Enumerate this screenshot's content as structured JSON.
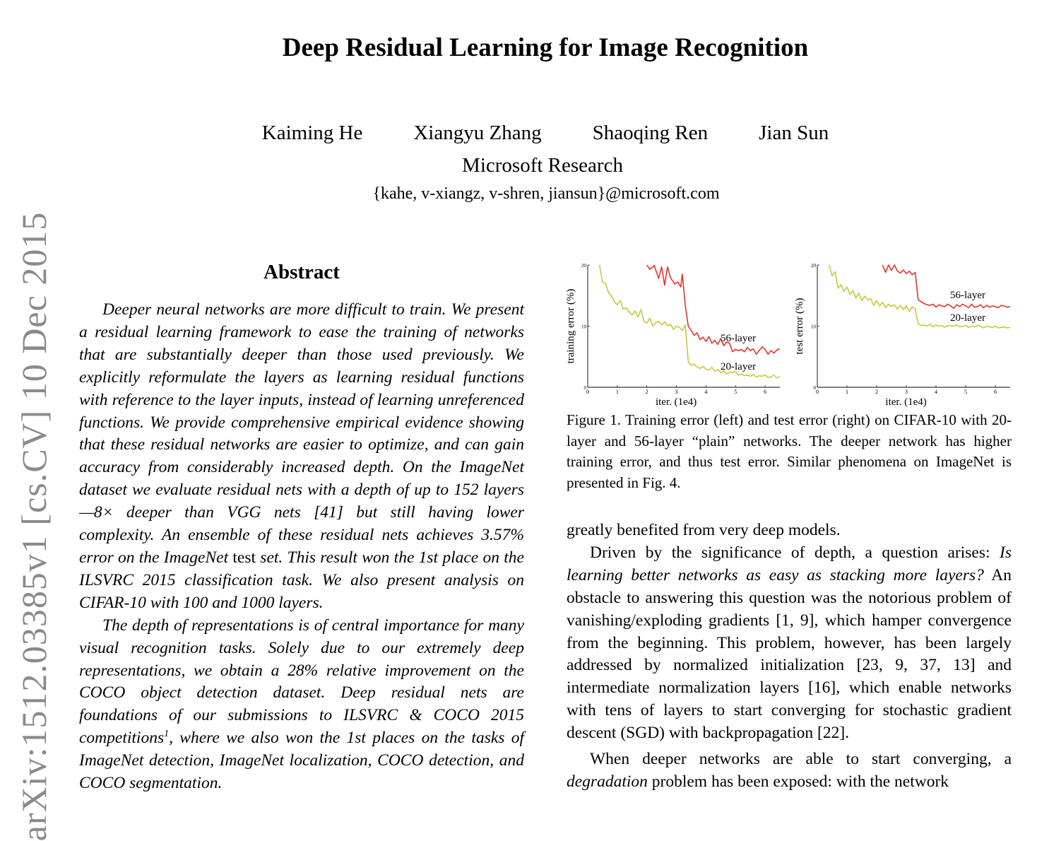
{
  "arxiv_stamp": "arXiv:1512.03385v1  [cs.CV]  10 Dec 2015",
  "title": "Deep Residual Learning for Image Recognition",
  "authors": [
    "Kaiming He",
    "Xiangyu Zhang",
    "Shaoqing Ren",
    "Jian Sun"
  ],
  "affiliation": "Microsoft Research",
  "email": "{kahe, v-xiangz, v-shren, jiansun}@microsoft.com",
  "abstract": {
    "heading": "Abstract",
    "p1_a": "Deeper neural networks are more difficult to train. We present a residual learning framework to ease the training of networks that are substantially deeper than those used previously. We explicitly reformulate the layers as learning residual functions with reference to the layer inputs, instead of learning unreferenced functions. We provide comprehensive empirical evidence showing that these residual networks are easier to optimize, and can gain accuracy from considerably increased depth. On the ImageNet dataset we evaluate residual nets with a depth of up to 152 layers—8× deeper than VGG nets [41] but still having lower complexity. An ensemble of these residual nets achieves 3.57% error on the ImageNet ",
    "p1_test": "test",
    "p1_b": " set. This result won the 1st place on the ILSVRC 2015 classification task. We also present analysis on CIFAR-10 with 100 and 1000 layers.",
    "p2_a": "The depth of representations is of central importance for many visual recognition tasks. Solely due to our extremely deep representations, we obtain a 28% relative improvement on the COCO object detection dataset. Deep residual nets are foundations of our submissions to ILSVRC & COCO 2015 competitions",
    "p2_footnote": "1",
    "p2_b": ", where we also won the 1st places on the tasks of ImageNet detection, ImageNet localization, COCO detection, and COCO segmentation."
  },
  "figure": {
    "caption": "Figure 1. Training error (left) and test error (right) on CIFAR-10 with 20-layer and 56-layer “plain” networks. The deeper network has higher training error, and thus test error. Similar phenomena on ImageNet is presented in Fig. 4."
  },
  "chart_data": [
    {
      "type": "line",
      "title": "",
      "xlabel": "iter. (1e4)",
      "ylabel": "training error (%)",
      "xlim": [
        0,
        6.5
      ],
      "ylim": [
        0,
        20
      ],
      "xticks": [
        "0",
        "1",
        "2",
        "3",
        "4",
        "5",
        "6"
      ],
      "yticks": [
        "0",
        "10",
        "20"
      ],
      "series": [
        {
          "name": "56-layer",
          "color": "#e8322f",
          "x": [
            2.0,
            2.1,
            2.25,
            2.4,
            2.5,
            2.6,
            2.7,
            2.8,
            2.95,
            3.05,
            3.15,
            3.2,
            3.3,
            3.4,
            3.5,
            3.6,
            3.7,
            3.8,
            3.9,
            4.0,
            4.1,
            4.2,
            4.3,
            4.4,
            4.5,
            4.6,
            4.7,
            4.8,
            4.9,
            5.0,
            5.1,
            5.2,
            5.3,
            5.4,
            5.5,
            5.6,
            5.7,
            5.8,
            5.9,
            6.0,
            6.1,
            6.2,
            6.3,
            6.4,
            6.5
          ],
          "values": [
            20.0,
            19.3,
            19.9,
            17.8,
            19.7,
            16.7,
            19.7,
            17.9,
            16.9,
            17.2,
            16.4,
            18.5,
            13.4,
            10.0,
            9.3,
            8.5,
            8.9,
            7.8,
            8.2,
            7.5,
            8.3,
            7.2,
            7.7,
            7.0,
            8.0,
            6.8,
            7.4,
            7.2,
            5.8,
            6.2,
            6.0,
            6.2,
            5.8,
            6.5,
            6.0,
            6.3,
            5.4,
            6.0,
            6.6,
            6.2,
            5.4,
            6.0,
            5.6,
            6.1,
            6.3
          ]
        },
        {
          "name": "20-layer",
          "color": "#c7c83a",
          "x": [
            0.4,
            0.5,
            0.6,
            0.7,
            0.8,
            0.9,
            1.0,
            1.1,
            1.2,
            1.3,
            1.4,
            1.5,
            1.6,
            1.7,
            1.8,
            1.9,
            2.0,
            2.1,
            2.2,
            2.3,
            2.4,
            2.5,
            2.6,
            2.7,
            2.8,
            2.9,
            3.0,
            3.1,
            3.2,
            3.3,
            3.4,
            3.5,
            3.6,
            3.7,
            3.8,
            3.9,
            4.0,
            4.1,
            4.2,
            4.3,
            4.4,
            4.5,
            4.6,
            4.7,
            4.8,
            4.9,
            5.0,
            5.1,
            5.2,
            5.3,
            5.4,
            5.5,
            5.6,
            5.7,
            5.8,
            5.9,
            6.0,
            6.1,
            6.2,
            6.3,
            6.4,
            6.5
          ],
          "values": [
            20.0,
            17.2,
            17.0,
            15.5,
            15.0,
            14.0,
            13.5,
            14.2,
            12.8,
            13.0,
            12.3,
            11.8,
            12.5,
            11.5,
            12.7,
            10.8,
            10.5,
            11.3,
            10.0,
            10.6,
            10.8,
            10.2,
            10.7,
            10.1,
            10.3,
            9.5,
            10.0,
            9.8,
            9.3,
            10.2,
            4.2,
            3.6,
            3.8,
            3.3,
            3.1,
            3.4,
            3.0,
            2.8,
            3.3,
            2.6,
            2.9,
            2.4,
            2.7,
            2.2,
            2.5,
            2.4,
            2.6,
            2.0,
            2.2,
            1.9,
            2.0,
            1.8,
            2.1,
            1.7,
            1.9,
            1.8,
            2.0,
            1.6,
            1.7,
            2.0,
            1.5,
            1.8
          ]
        }
      ]
    },
    {
      "type": "line",
      "title": "",
      "xlabel": "iter. (1e4)",
      "ylabel": "test error (%)",
      "xlim": [
        0,
        6.5
      ],
      "ylim": [
        0,
        20
      ],
      "xticks": [
        "0",
        "1",
        "2",
        "3",
        "4",
        "5",
        "6"
      ],
      "yticks": [
        "0",
        "10",
        "20"
      ],
      "series": [
        {
          "name": "56-layer",
          "color": "#e8322f",
          "x": [
            2.2,
            2.3,
            2.4,
            2.5,
            2.6,
            2.7,
            2.8,
            2.9,
            3.0,
            3.1,
            3.2,
            3.3,
            3.4,
            3.5,
            3.6,
            3.7,
            3.8,
            3.9,
            4.0,
            4.1,
            4.2,
            4.3,
            4.4,
            4.5,
            4.6,
            4.7,
            4.8,
            4.9,
            5.0,
            5.1,
            5.2,
            5.3,
            5.4,
            5.5,
            5.6,
            5.7,
            5.8,
            5.9,
            6.0,
            6.1,
            6.2,
            6.3,
            6.4,
            6.5
          ],
          "values": [
            20.0,
            18.8,
            20.0,
            19.1,
            20.0,
            19.0,
            18.7,
            19.2,
            18.6,
            19.0,
            18.4,
            18.8,
            14.3,
            14.0,
            13.7,
            13.5,
            13.4,
            13.6,
            13.1,
            13.5,
            13.3,
            13.2,
            13.6,
            13.3,
            12.9,
            13.5,
            13.2,
            13.6,
            13.3,
            13.0,
            13.6,
            13.1,
            13.2,
            13.5,
            13.0,
            13.4,
            13.1,
            13.3,
            13.2,
            13.0,
            13.4,
            13.3,
            13.1,
            13.2
          ]
        },
        {
          "name": "20-layer",
          "color": "#c7c83a",
          "x": [
            0.4,
            0.5,
            0.6,
            0.7,
            0.8,
            0.9,
            1.0,
            1.1,
            1.2,
            1.3,
            1.4,
            1.5,
            1.6,
            1.7,
            1.8,
            1.9,
            2.0,
            2.1,
            2.2,
            2.3,
            2.4,
            2.5,
            2.6,
            2.7,
            2.8,
            2.9,
            3.0,
            3.1,
            3.2,
            3.3,
            3.4,
            3.5,
            3.6,
            3.7,
            3.8,
            3.9,
            4.0,
            4.1,
            4.2,
            4.3,
            4.4,
            4.5,
            4.6,
            4.7,
            4.8,
            4.9,
            5.0,
            5.1,
            5.2,
            5.3,
            5.4,
            5.5,
            5.6,
            5.7,
            5.8,
            5.9,
            6.0,
            6.1,
            6.2,
            6.3,
            6.4,
            6.5
          ],
          "values": [
            20.0,
            18.2,
            18.9,
            16.2,
            16.8,
            15.7,
            16.4,
            15.2,
            15.8,
            14.6,
            15.4,
            14.2,
            14.9,
            14.3,
            14.5,
            13.4,
            14.2,
            13.3,
            13.9,
            13.0,
            13.6,
            13.2,
            13.5,
            12.8,
            13.4,
            12.7,
            13.3,
            12.4,
            13.2,
            12.8,
            10.4,
            10.1,
            10.2,
            10.0,
            10.3,
            9.9,
            10.2,
            10.0,
            10.1,
            9.8,
            10.1,
            10.0,
            10.0,
            10.2,
            9.9,
            10.0,
            10.1,
            9.8,
            10.0,
            9.9,
            10.1,
            10.0,
            9.7,
            10.0,
            9.9,
            9.8,
            10.0,
            9.7,
            9.8,
            9.9,
            9.7,
            9.8
          ]
        }
      ]
    }
  ],
  "body_right": {
    "p1": "greatly benefited from very deep models.",
    "p2_a": "Driven by the significance of depth, a question arises: ",
    "p2_question": "Is learning better networks as easy as stacking more layers?",
    "p2_b": " An obstacle to answering this question was the notorious problem of vanishing/exploding gradients [1, 9], which hamper convergence from the beginning. This problem, however, has been largely addressed by normalized initialization [23, 9, 37, 13] and intermediate normalization layers [16], which enable networks with tens of layers to start converging for stochastic gradient descent (SGD) with backpropagation [22].",
    "p3_a": "When deeper networks are able to start converging, a ",
    "p3_term": "degradation",
    "p3_b": " problem has been exposed: with the network"
  }
}
